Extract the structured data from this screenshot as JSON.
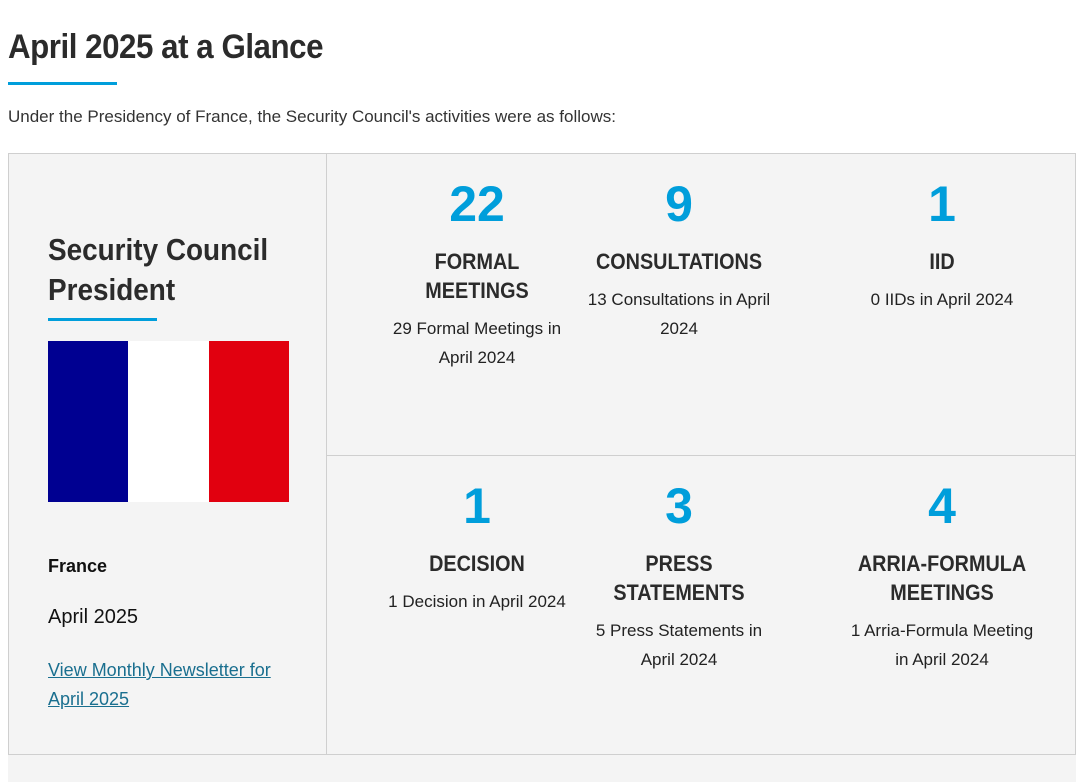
{
  "page": {
    "title": "April 2025 at a Glance",
    "intro": "Under the Presidency of France, the Security Council's activities were as follows:"
  },
  "president": {
    "heading": "Security Council President",
    "country": "France",
    "month": "April 2025",
    "newsletter_link": "View Monthly Newsletter for April 2025",
    "flag_colors": [
      "#000091",
      "#ffffff",
      "#e1000f"
    ]
  },
  "colors": {
    "accent": "#009edb",
    "panel": "#f4f4f4",
    "link": "#1a6f8f"
  },
  "stats": [
    {
      "number": "22",
      "label": "FORMAL MEETINGS",
      "desc": "29 Formal Meetings in April 2024"
    },
    {
      "number": "9",
      "label": "CONSULTATIONS",
      "desc": "13 Consultations in April 2024"
    },
    {
      "number": "1",
      "label": "IID",
      "desc": "0 IIDs in April 2024"
    },
    {
      "number": "1",
      "label": "DECISION",
      "desc": "1 Decision in April 2024"
    },
    {
      "number": "3",
      "label": "PRESS STATEMENTS",
      "desc": "5 Press Statements in April 2024"
    },
    {
      "number": "4",
      "label": "ARRIA-FORMULA MEETINGS",
      "desc": "1 Arria-Formula Meeting in April 2024"
    }
  ]
}
